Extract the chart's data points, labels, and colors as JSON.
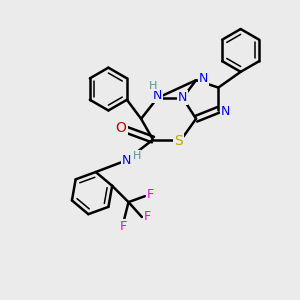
{
  "background_color": "#ebebeb",
  "atom_colors": {
    "C": "#000000",
    "H": "#5a9090",
    "N": "#0000ee",
    "O": "#cc0000",
    "S": "#bbaa00",
    "F": "#ee00ee"
  },
  "bond_color": "#000000",
  "bond_width": 1.8,
  "figsize": [
    3.0,
    3.0
  ],
  "dpi": 100,
  "xlim": [
    0,
    10
  ],
  "ylim": [
    0,
    10
  ]
}
